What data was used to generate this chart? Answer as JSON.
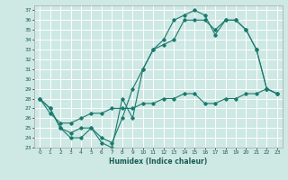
{
  "title": "",
  "xlabel": "Humidex (Indice chaleur)",
  "ylabel": "",
  "bg_color": "#cee8e4",
  "grid_color": "#ffffff",
  "line_color": "#1a7a6e",
  "xlim": [
    -0.5,
    23.5
  ],
  "ylim": [
    23,
    37.5
  ],
  "xticks": [
    0,
    1,
    2,
    3,
    4,
    5,
    6,
    7,
    8,
    9,
    10,
    11,
    12,
    13,
    14,
    15,
    16,
    17,
    18,
    19,
    20,
    21,
    22,
    23
  ],
  "yticks": [
    23,
    24,
    25,
    26,
    27,
    28,
    29,
    30,
    31,
    32,
    33,
    34,
    35,
    36,
    37
  ],
  "line1_x": [
    0,
    1,
    2,
    3,
    4,
    5,
    6,
    7,
    8,
    9,
    10,
    11,
    12,
    13,
    14,
    15,
    16,
    17,
    18,
    19,
    20,
    21,
    22,
    23
  ],
  "line1_y": [
    28,
    27,
    25,
    24,
    24,
    25,
    23.5,
    23,
    28,
    26,
    31,
    33,
    34,
    36,
    36.5,
    37,
    36.5,
    34.5,
    36,
    36,
    35,
    33,
    29,
    28.5
  ],
  "line2_x": [
    0,
    1,
    2,
    3,
    4,
    5,
    6,
    7,
    8,
    9,
    10,
    11,
    12,
    13,
    14,
    15,
    16,
    17,
    18,
    19,
    20,
    21,
    22,
    23
  ],
  "line2_y": [
    28,
    27,
    25,
    24.5,
    25,
    25,
    24,
    23.5,
    26,
    29,
    31,
    33,
    33.5,
    34,
    36,
    36,
    36,
    35,
    36,
    36,
    35,
    33,
    29,
    28.5
  ],
  "line3_x": [
    0,
    1,
    2,
    3,
    4,
    5,
    6,
    7,
    8,
    9,
    10,
    11,
    12,
    13,
    14,
    15,
    16,
    17,
    18,
    19,
    20,
    21,
    22,
    23
  ],
  "line3_y": [
    28,
    26.5,
    25.5,
    25.5,
    26,
    26.5,
    26.5,
    27,
    27,
    27,
    27.5,
    27.5,
    28,
    28,
    28.5,
    28.5,
    27.5,
    27.5,
    28,
    28,
    28.5,
    28.5,
    29,
    28.5
  ]
}
